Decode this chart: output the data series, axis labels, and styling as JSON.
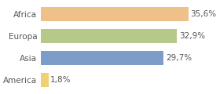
{
  "categories": [
    "America",
    "Asia",
    "Europa",
    "Africa"
  ],
  "values": [
    1.8,
    29.7,
    32.9,
    35.6
  ],
  "bar_colors": [
    "#f0d070",
    "#7b9dc8",
    "#b5c98a",
    "#f0c08a"
  ],
  "labels": [
    "1,8%",
    "29,7%",
    "32,9%",
    "35,6%"
  ],
  "background_color": "#ffffff",
  "xlim": [
    0,
    42
  ],
  "bar_height": 0.65,
  "label_fontsize": 7.5,
  "tick_fontsize": 7.5
}
